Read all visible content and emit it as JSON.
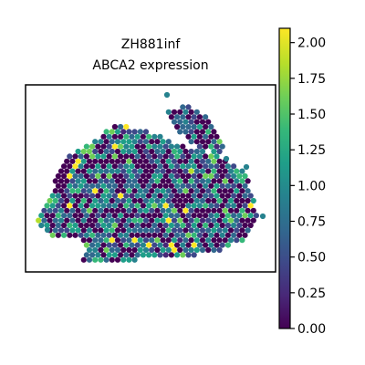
{
  "chart_data": {
    "type": "scatter",
    "title_line1": "ZH881inf",
    "title_line2": "ABCA2 expression",
    "xlabel": "",
    "ylabel": "",
    "axis_ticks_visible": false,
    "grid": false,
    "colorbar": {
      "label": "",
      "range": [
        0.0,
        2.1
      ],
      "colormap": "viridis",
      "ticks": [
        "0.00",
        "0.25",
        "0.50",
        "0.75",
        "1.00",
        "1.25",
        "1.50",
        "1.75",
        "2.00"
      ],
      "tick_values": [
        0.0,
        0.25,
        0.5,
        0.75,
        1.0,
        1.25,
        1.5,
        1.75,
        2.0
      ]
    },
    "spot_color_scale": [
      "#440154",
      "#482878",
      "#3e4989",
      "#31688e",
      "#26828e",
      "#1f9e89",
      "#35b779",
      "#6ece58",
      "#b5de2b",
      "#fde725"
    ],
    "spots_description": "hexagonal grid of spatial transcriptomics spots; values mostly 0.0-1.25, few near 2.0",
    "spots_note_rows": 0
  }
}
